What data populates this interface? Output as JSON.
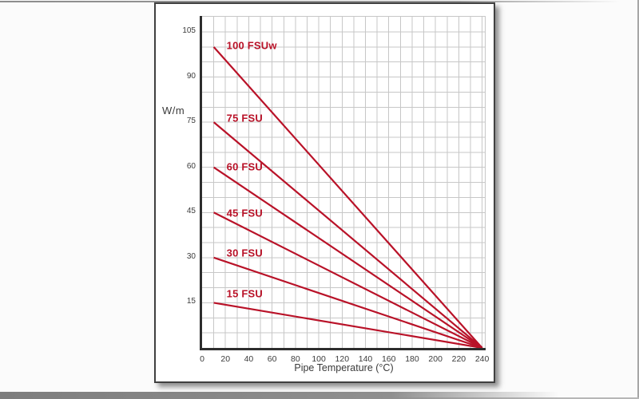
{
  "window": {
    "background": "#fbfbfb",
    "frame_color": "#9a9a9a"
  },
  "panel": {
    "background": "#ffffff",
    "border_color": "#404040"
  },
  "chart_data": {
    "type": "line",
    "title": "",
    "xlabel": "Pipe Temperature (°C)",
    "ylabel": "W/m",
    "xlim": [
      0,
      243
    ],
    "ylim": [
      0,
      110.3
    ],
    "x_ticks": [
      0,
      20,
      40,
      60,
      80,
      100,
      120,
      140,
      160,
      180,
      200,
      220,
      240
    ],
    "y_ticks": [
      15,
      30,
      45,
      60,
      75,
      90,
      105
    ],
    "grid": {
      "x_step": 10,
      "y_step": 5,
      "on": true
    },
    "grid_color": "#c7c7c7",
    "axis_color": "#2d2d2d",
    "line_color": "#b91228",
    "label_color": "#b91228",
    "legend_position": "inline-labels",
    "series": [
      {
        "name": "100 FSUw",
        "points": [
          [
            10,
            100
          ],
          [
            240,
            0
          ]
        ],
        "label_pos": [
          21,
          100.4
        ]
      },
      {
        "name": "75 FSU",
        "points": [
          [
            10,
            75
          ],
          [
            240,
            0
          ]
        ],
        "label_pos": [
          21,
          76.4
        ]
      },
      {
        "name": "60 FSU",
        "points": [
          [
            10,
            60
          ],
          [
            240,
            0
          ]
        ],
        "label_pos": [
          21,
          60.3
        ]
      },
      {
        "name": "45 FSU",
        "points": [
          [
            10,
            45
          ],
          [
            240,
            0
          ]
        ],
        "label_pos": [
          21,
          44.8
        ]
      },
      {
        "name": "30 FSU",
        "points": [
          [
            10,
            30
          ],
          [
            240,
            0
          ]
        ],
        "label_pos": [
          21,
          31.6
        ]
      },
      {
        "name": "15 FSU",
        "points": [
          [
            10,
            15
          ],
          [
            240,
            0
          ]
        ],
        "label_pos": [
          21,
          17.9
        ]
      }
    ],
    "convergence_point": [
      240,
      0
    ]
  }
}
